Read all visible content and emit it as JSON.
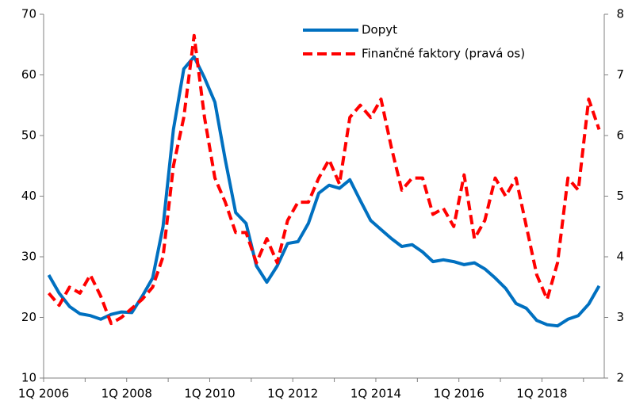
{
  "chart_data": {
    "type": "line",
    "categories": [
      "1Q 2006",
      null,
      null,
      null,
      null,
      null,
      null,
      null,
      "1Q 2008",
      null,
      null,
      null,
      null,
      null,
      null,
      null,
      "1Q 2010",
      null,
      null,
      null,
      null,
      null,
      null,
      null,
      "1Q 2012",
      null,
      null,
      null,
      null,
      null,
      null,
      null,
      "1Q 2014",
      null,
      null,
      null,
      null,
      null,
      null,
      null,
      "1Q 2016",
      null,
      null,
      null,
      null,
      null,
      null,
      null,
      "1Q 2018",
      null,
      null,
      null,
      null,
      null
    ],
    "series": [
      {
        "name": "Dopyt",
        "color": "#0070c0",
        "dash": false,
        "values": [
          27,
          24,
          21.8,
          20.6,
          20.3,
          19.7,
          20.5,
          20.9,
          20.8,
          23.5,
          26.5,
          35,
          51,
          61,
          63,
          59.5,
          55.5,
          46,
          37.3,
          35.5,
          28.5,
          25.8,
          28.5,
          32.2,
          32.5,
          35.5,
          40.5,
          41.8,
          41.3,
          42.7,
          39.3,
          36,
          34.5,
          33,
          31.7,
          32,
          30.8,
          29.2,
          29.5,
          29.2,
          28.7,
          29,
          28,
          26.5,
          24.8,
          22.3,
          21.5,
          19.5,
          18.8,
          18.6,
          19.7,
          20.3,
          22.2,
          25.2
        ]
      },
      {
        "name": "Finančné faktory (pravá os)",
        "color": "#ff0000",
        "dash": true,
        "axis": "y2",
        "values": [
          3.4,
          3.2,
          3.5,
          3.4,
          3.7,
          3.35,
          2.9,
          3.0,
          3.15,
          3.3,
          3.5,
          4.0,
          5.5,
          6.3,
          7.65,
          6.3,
          5.3,
          4.9,
          4.4,
          4.4,
          3.9,
          4.3,
          3.9,
          4.6,
          4.9,
          4.9,
          5.3,
          5.6,
          5.2,
          6.3,
          6.5,
          6.3,
          6.6,
          5.8,
          5.1,
          5.3,
          5.3,
          4.7,
          4.8,
          4.5,
          5.35,
          4.3,
          4.6,
          5.3,
          5.0,
          5.3,
          4.5,
          3.7,
          3.3,
          3.9,
          5.3,
          5.1,
          6.6,
          6.1
        ]
      }
    ],
    "ylim": [
      10,
      70
    ],
    "yticks": [
      10,
      20,
      30,
      40,
      50,
      60,
      70
    ],
    "y2lim": [
      2,
      8
    ],
    "y2ticks": [
      2,
      3,
      4,
      5,
      6,
      7,
      8
    ],
    "grid": false,
    "legend": "top"
  }
}
